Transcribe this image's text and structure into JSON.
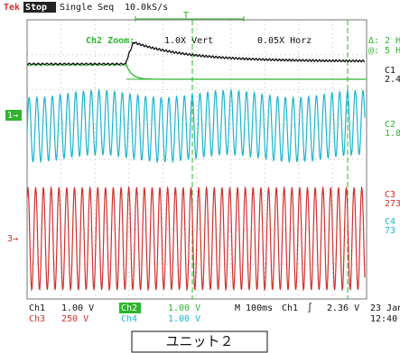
{
  "header": {
    "brand": "Tek",
    "state": "Stop",
    "mode": "Single Seq",
    "rate": "10.0kS/s"
  },
  "zoom": {
    "label": "Ch2 Zoom:",
    "vert": "1.0X Vert",
    "horz": "0.05X Horz"
  },
  "cursor": {
    "delta": "Δ: 2 H",
    "at": "@: 5 H"
  },
  "markers": {
    "ch1": "1→",
    "ch3": "3→",
    "trigger": "T"
  },
  "readouts": [
    {
      "label": "C1",
      "value": "2.4"
    },
    {
      "label": "C2",
      "value": "1.8"
    },
    {
      "label": "C3",
      "value": "273"
    },
    {
      "label": "C4",
      "value": "73"
    }
  ],
  "footer": {
    "ch1": "Ch1",
    "ch1_scale": "1.00 V",
    "ch3": "Ch3",
    "ch3_scale": "250 V",
    "ch2": "Ch2",
    "ch2_scale": "1.00 V",
    "ch4": "Ch4",
    "ch4_scale": "1.00 V",
    "timebase": "M 100ms",
    "trig_src": "Ch1",
    "trig_slope": "∫",
    "trig_level": "2.36 V",
    "date": "23 Jan",
    "time": "12:40"
  },
  "caption": "ユニット２"
}
